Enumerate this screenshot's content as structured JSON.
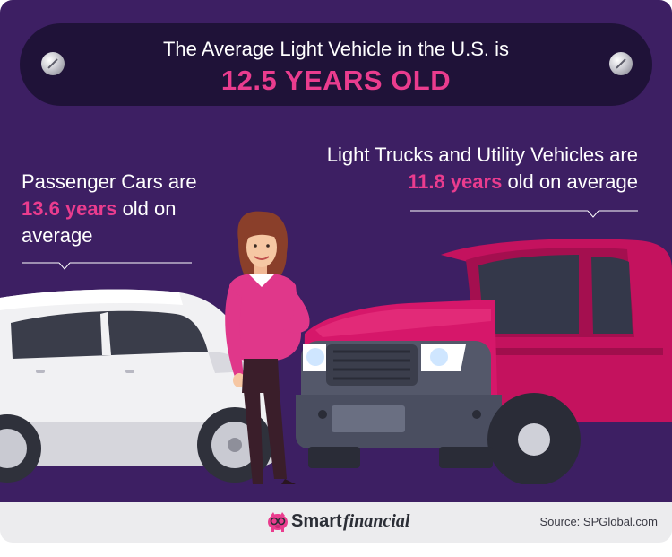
{
  "banner": {
    "line1": "The Average Light Vehicle in the U.S. is",
    "line2": "12.5 YEARS OLD"
  },
  "passenger_cars": {
    "prefix": "Passenger Cars are",
    "highlight": "13.6 years",
    "suffix_1": "old on",
    "suffix_2": "average"
  },
  "trucks": {
    "prefix": "Light Trucks and Utility Vehicles are",
    "highlight": "11.8 years",
    "suffix": "old on average"
  },
  "footer": {
    "brand_bold": "Smart",
    "brand_italic": "financial",
    "source": "Source: SPGlobal.com"
  },
  "icons": {
    "bolts": "bolt-icon",
    "brand": "piggy-bank-glasses-icon"
  },
  "colors": {
    "background": "#3d1f63",
    "banner": "#1f1238",
    "accent_pink": "#ea3c8e",
    "truck": "#c4125e",
    "car": "#f2f2f4"
  }
}
